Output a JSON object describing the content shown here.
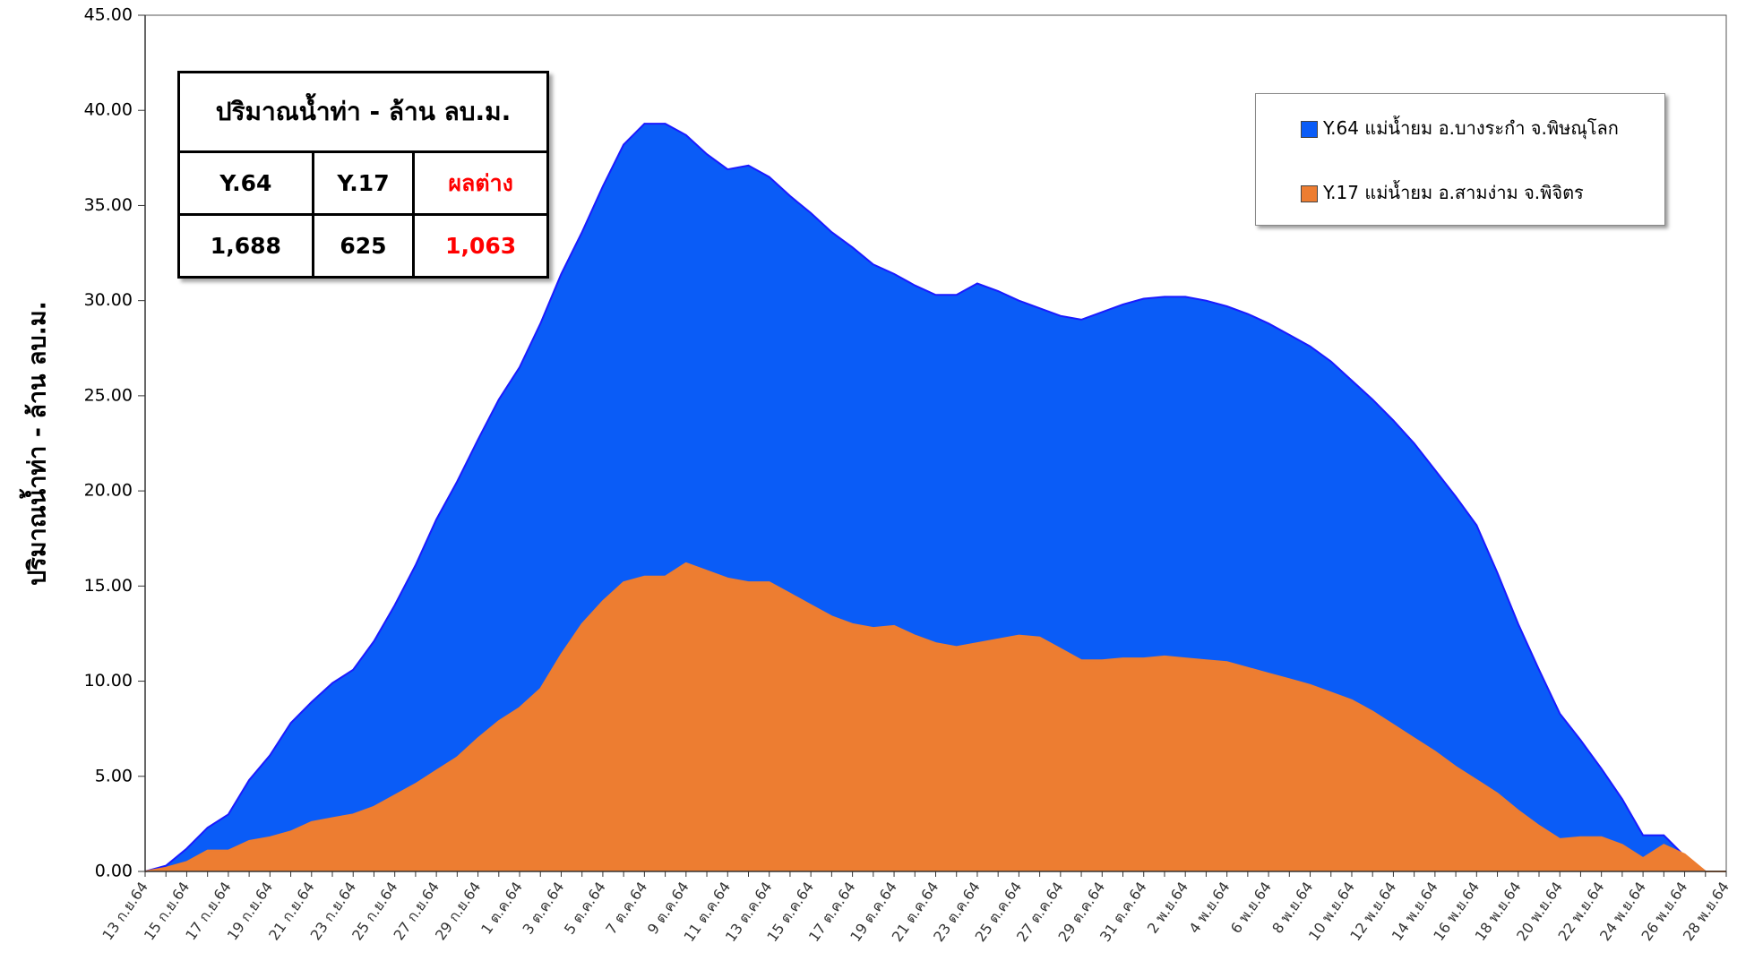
{
  "chart_data": {
    "type": "area",
    "y_label": "ปริมาณน้ำท่า  -  ล้าน ลบ.ม.",
    "categories": [
      "13 ก.ย.64",
      null,
      "15 ก.ย.64",
      null,
      "17 ก.ย.64",
      null,
      "19 ก.ย.64",
      null,
      "21 ก.ย.64",
      null,
      "23 ก.ย.64",
      null,
      "25 ก.ย.64",
      null,
      "27 ก.ย.64",
      null,
      "29 ก.ย.64",
      null,
      "1 ต.ค.64",
      null,
      "3 ต.ค.64",
      null,
      "5 ต.ค.64",
      null,
      "7 ต.ค.64",
      null,
      "9 ต.ค.64",
      null,
      "11 ต.ค.64",
      null,
      "13 ต.ค.64",
      null,
      "15 ต.ค.64",
      null,
      "17 ต.ค.64",
      null,
      "19 ต.ค.64",
      null,
      "21 ต.ค.64",
      null,
      "23 ต.ค.64",
      null,
      "25 ต.ค.64",
      null,
      "27 ต.ค.64",
      null,
      "29 ต.ค.64",
      null,
      "31 ต.ค.64",
      null,
      "2 พ.ย.64",
      null,
      "4 พ.ย.64",
      null,
      "6 พ.ย.64",
      null,
      "8 พ.ย.64",
      null,
      "10 พ.ย.64",
      null,
      "12 พ.ย.64",
      null,
      "14 พ.ย.64",
      null,
      "16 พ.ย.64",
      null,
      "18 พ.ย.64",
      null,
      "20 พ.ย.64",
      null,
      "22 พ.ย.64",
      null,
      "24 พ.ย.64",
      null,
      "26 พ.ย.64",
      null,
      "28 พ.ย.64"
    ],
    "series": [
      {
        "name": "Y.64 แม่น้ำยม อ.บางระกำ จ.พิษณุโลก",
        "color": "#0a5cf7",
        "line_color": "#1a1aff",
        "values": [
          0,
          0.3,
          1.2,
          2.3,
          3.0,
          4.8,
          6.1,
          7.8,
          8.9,
          9.9,
          10.6,
          12.1,
          14.0,
          16.1,
          18.5,
          20.5,
          22.7,
          24.8,
          26.5,
          28.8,
          31.4,
          33.6,
          36.0,
          38.2,
          39.3,
          39.3,
          38.7,
          37.7,
          36.9,
          37.1,
          36.5,
          35.5,
          34.6,
          33.6,
          32.8,
          31.9,
          31.4,
          30.8,
          30.3,
          30.3,
          30.9,
          30.5,
          30.0,
          29.6,
          29.2,
          29.0,
          29.4,
          29.8,
          30.1,
          30.2,
          30.2,
          30.0,
          29.7,
          29.3,
          28.8,
          28.2,
          27.6,
          26.8,
          25.8,
          24.8,
          23.7,
          22.5,
          21.1,
          19.7,
          18.2,
          15.7,
          13.0,
          10.6,
          8.3,
          6.9,
          5.4,
          3.8,
          1.9,
          1.9,
          0.8,
          0,
          0
        ]
      },
      {
        "name": "Y.17 แม่น้ำยม อ.สามง่าม จ.พิจิตร",
        "color": "#ed7d31",
        "line_color": "#ed7d31",
        "values": [
          0,
          0.2,
          0.5,
          1.1,
          1.1,
          1.6,
          1.8,
          2.1,
          2.6,
          2.8,
          3.0,
          3.4,
          4.0,
          4.6,
          5.3,
          6.0,
          7.0,
          7.9,
          8.6,
          9.6,
          11.4,
          13.0,
          14.2,
          15.2,
          15.5,
          15.5,
          16.2,
          15.8,
          15.4,
          15.2,
          15.2,
          14.6,
          14.0,
          13.4,
          13.0,
          12.8,
          12.9,
          12.4,
          12.0,
          11.8,
          12.0,
          12.2,
          12.4,
          12.3,
          11.7,
          11.1,
          11.1,
          11.2,
          11.2,
          11.3,
          11.2,
          11.1,
          11.0,
          10.7,
          10.4,
          10.1,
          9.8,
          9.4,
          9.0,
          8.4,
          7.7,
          7.0,
          6.3,
          5.5,
          4.8,
          4.1,
          3.2,
          2.4,
          1.7,
          1.8,
          1.8,
          1.4,
          0.7,
          1.4,
          0.9,
          0,
          0
        ]
      }
    ],
    "ylim": [
      0,
      45
    ],
    "yticks": [
      {
        "value": 0,
        "label": "0.00"
      },
      {
        "value": 5,
        "label": "5.00"
      },
      {
        "value": 10,
        "label": "10.00"
      },
      {
        "value": 15,
        "label": "15.00"
      },
      {
        "value": 20,
        "label": "20.00"
      },
      {
        "value": 25,
        "label": "25.00"
      },
      {
        "value": 30,
        "label": "30.00"
      },
      {
        "value": 35,
        "label": "35.00"
      },
      {
        "value": 40,
        "label": "40.00"
      },
      {
        "value": 45,
        "label": "45.00"
      }
    ],
    "grid": false,
    "legend": "upper right"
  },
  "summary_table": {
    "title": "ปริมาณน้ำท่า - ล้าน ลบ.ม.",
    "header": [
      "Y.64",
      "Y.17",
      "ผลต่าง"
    ],
    "row": [
      "1,688",
      "625",
      "1,063"
    ]
  }
}
